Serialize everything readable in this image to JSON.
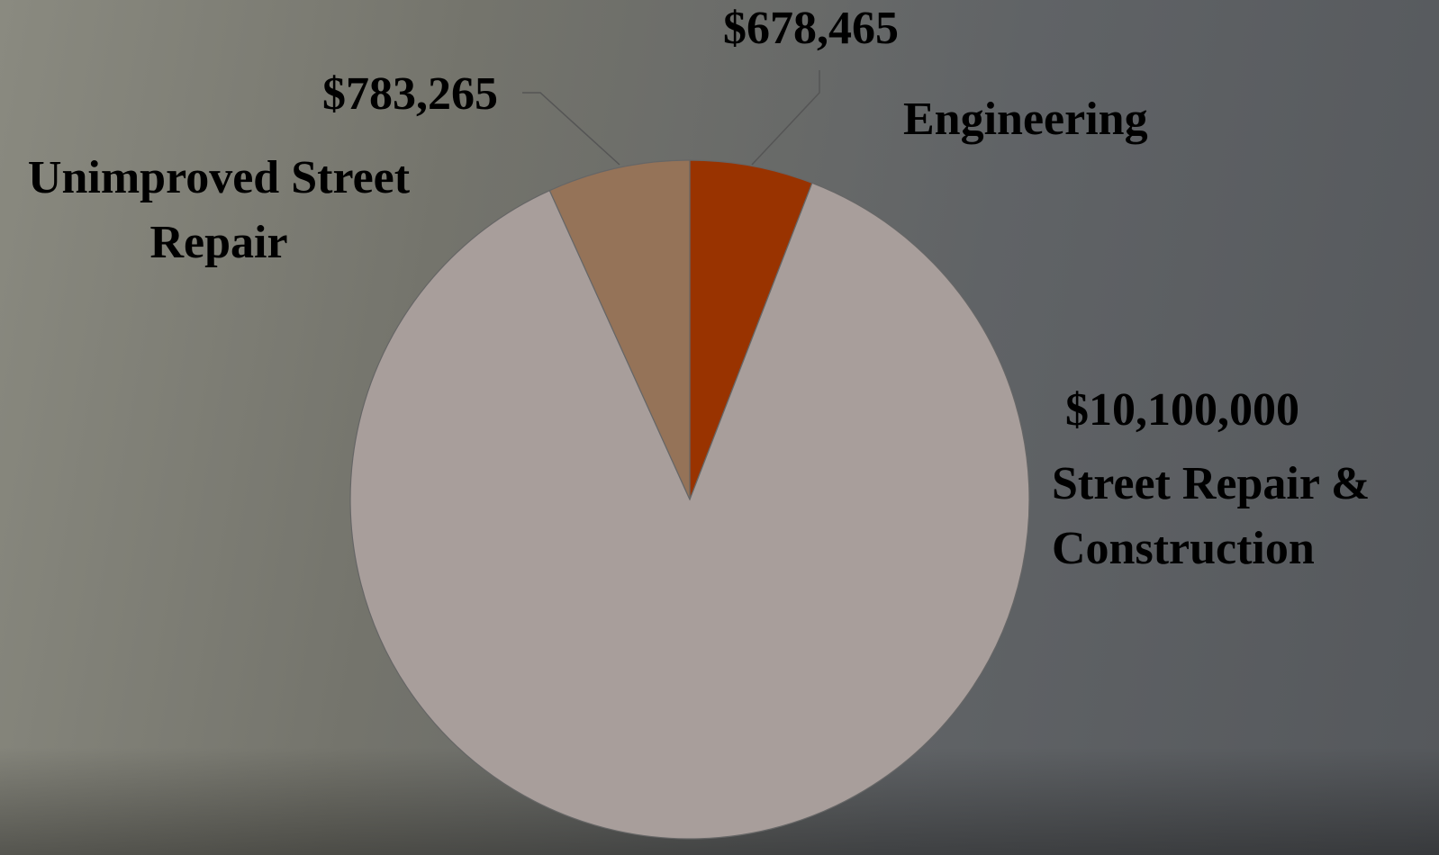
{
  "chart_data": {
    "type": "pie",
    "categories": [
      "Engineering",
      "Street Repair & Construction",
      "Unimproved Street Repair"
    ],
    "values": [
      678465,
      10100000,
      783265
    ],
    "value_labels": [
      "$678,465",
      "$10,100,000",
      "$783,265"
    ],
    "colors": [
      "#993300",
      "#a89e9b",
      "#957358"
    ]
  }
}
